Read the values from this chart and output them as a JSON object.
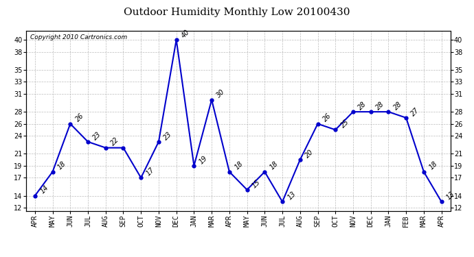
{
  "title": "Outdoor Humidity Monthly Low 20100430",
  "copyright": "Copyright 2010 Cartronics.com",
  "x_labels": [
    "APR",
    "MAY",
    "JUN",
    "JUL",
    "AUG",
    "SEP",
    "OCT",
    "NOV",
    "DEC",
    "JAN",
    "MAR",
    "APR",
    "MAY",
    "JUN",
    "JUL",
    "AUG",
    "SEP",
    "OCT",
    "NOV",
    "DEC",
    "JAN",
    "FEB",
    "MAR",
    "APR"
  ],
  "y_vals": [
    14,
    18,
    26,
    23,
    22,
    22,
    17,
    23,
    40,
    19,
    30,
    18,
    15,
    18,
    13,
    20,
    26,
    25,
    28,
    28,
    28,
    27,
    18,
    13
  ],
  "point_labels": [
    "14",
    "18",
    "26",
    "23",
    "22",
    "",
    "17",
    "23",
    "40",
    "19",
    "30",
    "18",
    "15",
    "18",
    "13",
    "20",
    "26",
    "25",
    "28",
    "28",
    "28",
    "27",
    "18",
    "13"
  ],
  "yticks": [
    12,
    14,
    17,
    19,
    21,
    24,
    26,
    28,
    31,
    33,
    35,
    38,
    40
  ],
  "ylim_low": 11.5,
  "ylim_high": 41.5,
  "line_color": "#0000cc",
  "grid_color": "#aaaaaa",
  "bg_color": "#ffffff",
  "title_fontsize": 11,
  "tick_fontsize": 7,
  "label_fontsize": 7
}
